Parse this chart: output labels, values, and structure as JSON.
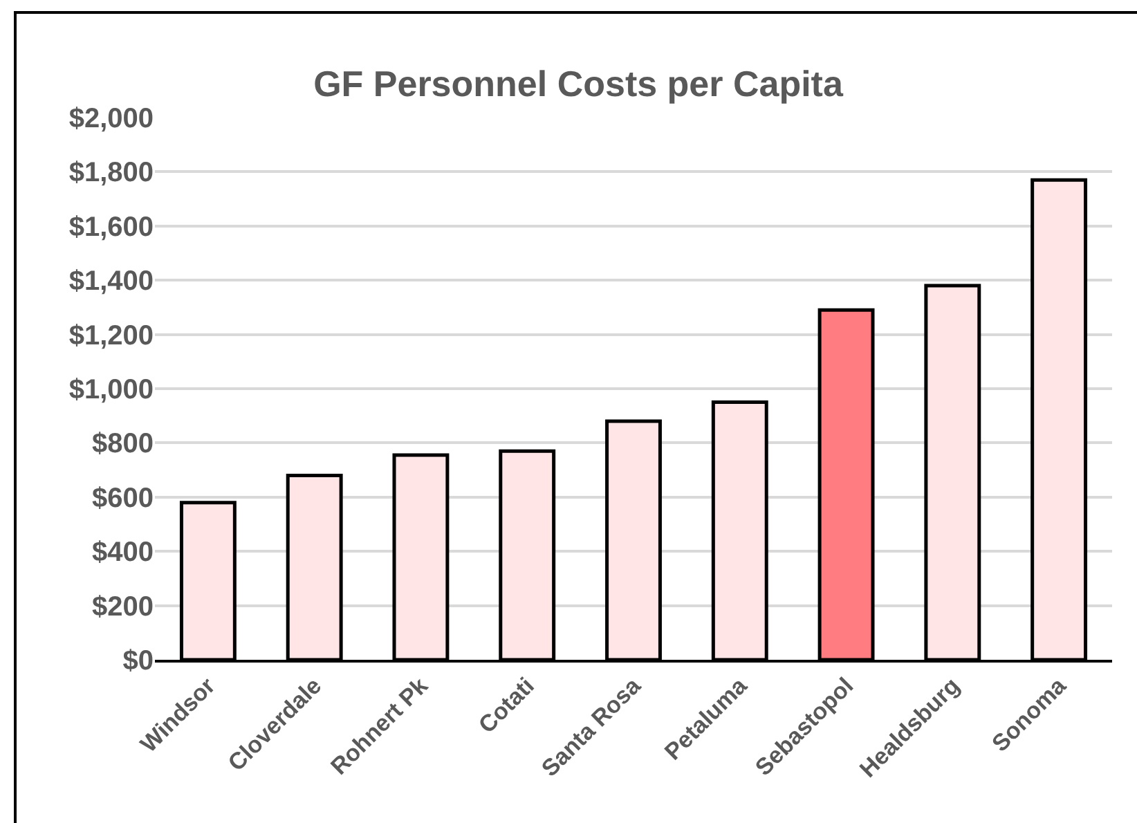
{
  "chart_data": {
    "type": "bar",
    "title": "GF Personnel Costs per Capita",
    "categories": [
      "Windsor",
      "Cloverdale",
      "Rohnert Pk",
      "Cotati",
      "Santa Rosa",
      "Petaluma",
      "Sebastopol",
      "Healdsburg",
      "Sonoma"
    ],
    "values": [
      580,
      680,
      755,
      770,
      880,
      950,
      1290,
      1380,
      1770
    ],
    "colors": [
      "#ffe5e5",
      "#ffe5e5",
      "#ffe5e5",
      "#ffe5e5",
      "#ffe5e5",
      "#ffe5e5",
      "#ff7c80",
      "#ffe5e5",
      "#ffe5e5"
    ],
    "ylim": [
      0,
      2000
    ],
    "yticks": [
      {
        "value": 0,
        "label": "$0"
      },
      {
        "value": 200,
        "label": "$200"
      },
      {
        "value": 400,
        "label": "$400"
      },
      {
        "value": 600,
        "label": "$600"
      },
      {
        "value": 800,
        "label": "$800"
      },
      {
        "value": 1000,
        "label": "$1,000"
      },
      {
        "value": 1200,
        "label": "$1,200"
      },
      {
        "value": 1400,
        "label": "$1,400"
      },
      {
        "value": 1600,
        "label": "$1,600"
      },
      {
        "value": 1800,
        "label": "$1,800"
      },
      {
        "value": 2000,
        "label": "$2,000"
      }
    ],
    "grid": "y"
  }
}
